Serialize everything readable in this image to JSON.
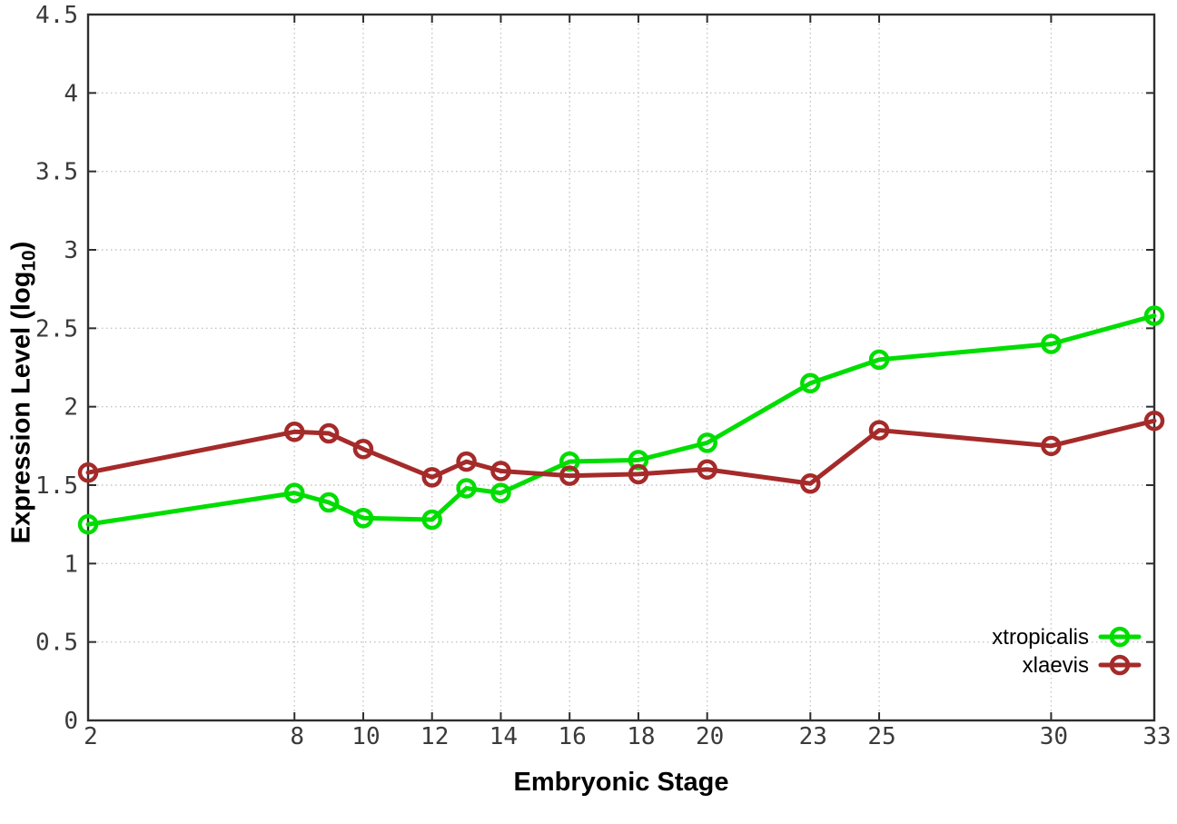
{
  "chart_data": {
    "type": "line",
    "title": "",
    "xlabel": "Embryonic Stage",
    "ylabel": "Expression Level (log10)",
    "ylabel_parts": {
      "pre": "Expression Level (log",
      "sub": "10",
      "post": ")"
    },
    "x": [
      2,
      8,
      9,
      10,
      12,
      13,
      14,
      16,
      18,
      20,
      23,
      25,
      30,
      33
    ],
    "series": [
      {
        "name": "xtropicalis",
        "color": "#00dd00",
        "values": [
          1.25,
          1.45,
          1.39,
          1.29,
          1.28,
          1.48,
          1.45,
          1.65,
          1.66,
          1.77,
          2.15,
          2.3,
          2.4,
          2.58
        ]
      },
      {
        "name": "xlaevis",
        "color": "#a52a2a",
        "values": [
          1.58,
          1.84,
          1.83,
          1.73,
          1.55,
          1.65,
          1.59,
          1.56,
          1.57,
          1.6,
          1.51,
          1.85,
          1.75,
          1.91
        ]
      }
    ],
    "xlim": [
      2,
      33
    ],
    "ylim": [
      0,
      4.5
    ],
    "xticks": {
      "values": [
        2,
        8,
        10,
        12,
        14,
        16,
        18,
        20,
        23,
        25,
        30,
        33
      ],
      "labels": [
        "2",
        "8",
        "10",
        "12",
        "14",
        "16",
        "18",
        "20",
        "23",
        "25",
        "30",
        "33"
      ]
    },
    "yticks": {
      "values": [
        0,
        0.5,
        1,
        1.5,
        2,
        2.5,
        3,
        3.5,
        4,
        4.5
      ],
      "labels": [
        "0",
        "0.5",
        "1",
        "1.5",
        "2",
        "2.5",
        "3",
        "3.5",
        "4",
        "4.5"
      ]
    },
    "grid": true,
    "legend_position": "bottom-right",
    "marker": "open-circle"
  },
  "colors": {
    "axis": "#2e2e2e",
    "grid": "#c4c4c4",
    "tick_text": "#3a3a3a",
    "legend_text": "#000000"
  }
}
